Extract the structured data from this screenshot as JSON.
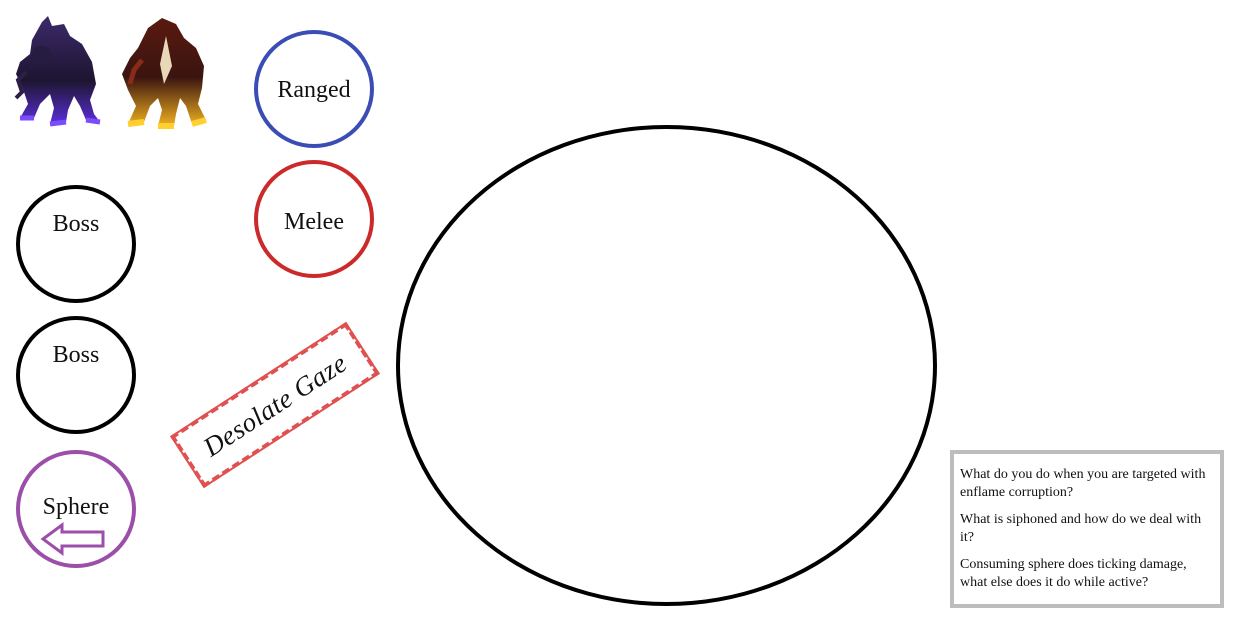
{
  "tokens": {
    "ranged_label": "Ranged",
    "melee_label": "Melee",
    "boss_1_label": "Boss",
    "boss_2_label": "Boss",
    "sphere_label": "Sphere"
  },
  "ability": {
    "label": "Desolate Gaze"
  },
  "questions": [
    "What do you do when you are targeted with enflame corruption?",
    "What is siphoned and how do we deal with it?",
    "Consuming sphere does ticking damage, what else does it do while active?"
  ],
  "colors": {
    "ranged": "#3b4db5",
    "melee": "#cc2a2a",
    "boss": "#000000",
    "sphere": "#9b4fa8",
    "ability": "#e05050",
    "question_border": "#bdbdbd"
  },
  "icons": {
    "monster_a": "shadow-demon-icon",
    "monster_b": "fire-demon-icon",
    "sphere_arrow": "left-arrow-icon"
  }
}
